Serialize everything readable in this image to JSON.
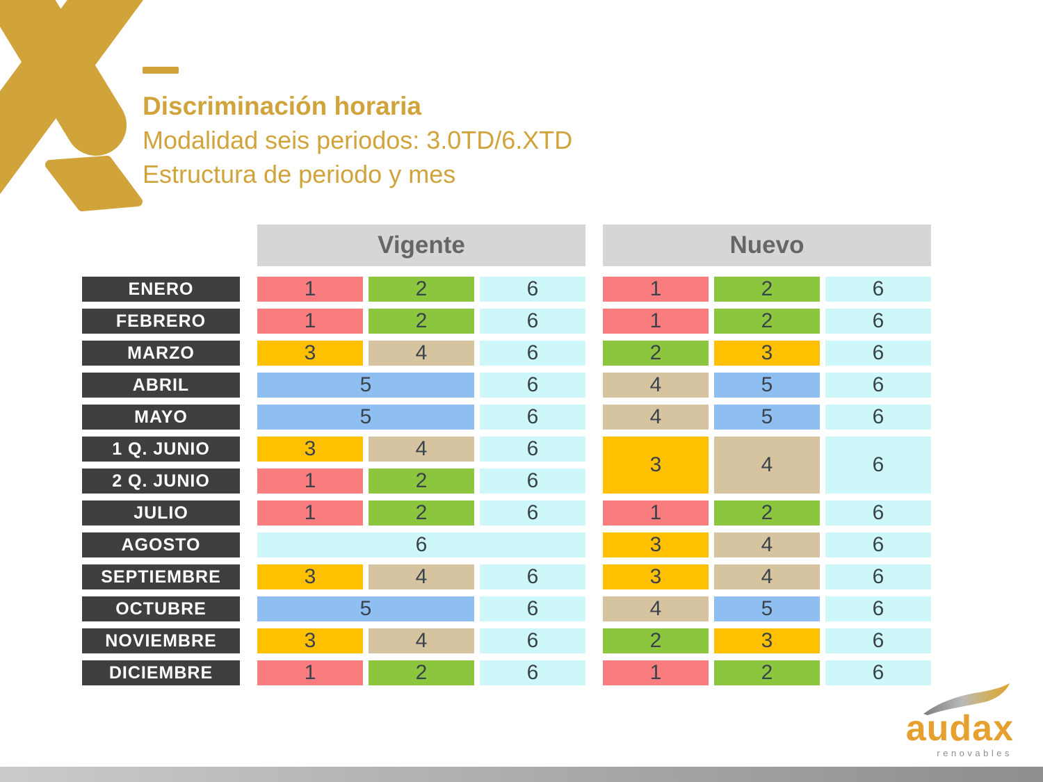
{
  "header": {
    "title": "Discriminación horaria",
    "subtitle1": "Modalidad seis periodos: 3.0TD/6.XTD",
    "subtitle2": "Estructura de periodo y mes"
  },
  "tables": {
    "group_headers": [
      {
        "label": "Vigente"
      },
      {
        "label": "Nuevo"
      }
    ],
    "period_colors": {
      "1": "#F97D7E",
      "2": "#8CC63F",
      "3": "#FFC000",
      "4": "#D6C3A0",
      "5": "#8FBEF1",
      "6": "#CEF7F9"
    },
    "rows": [
      {
        "month": "ENERO",
        "vigente": [
          {
            "p": "1"
          },
          {
            "p": "2"
          },
          {
            "p": "6"
          }
        ],
        "nuevo": [
          {
            "p": "1"
          },
          {
            "p": "2"
          },
          {
            "p": "6"
          }
        ]
      },
      {
        "month": "FEBRERO",
        "vigente": [
          {
            "p": "1"
          },
          {
            "p": "2"
          },
          {
            "p": "6"
          }
        ],
        "nuevo": [
          {
            "p": "1"
          },
          {
            "p": "2"
          },
          {
            "p": "6"
          }
        ]
      },
      {
        "month": "MARZO",
        "vigente": [
          {
            "p": "3"
          },
          {
            "p": "4"
          },
          {
            "p": "6"
          }
        ],
        "nuevo": [
          {
            "p": "2"
          },
          {
            "p": "3"
          },
          {
            "p": "6"
          }
        ]
      },
      {
        "month": "ABRIL",
        "vigente": [
          {
            "p": "5",
            "cs": 2
          },
          {
            "p": "6"
          }
        ],
        "nuevo": [
          {
            "p": "4"
          },
          {
            "p": "5"
          },
          {
            "p": "6"
          }
        ]
      },
      {
        "month": "MAYO",
        "vigente": [
          {
            "p": "5",
            "cs": 2
          },
          {
            "p": "6"
          }
        ],
        "nuevo": [
          {
            "p": "4"
          },
          {
            "p": "5"
          },
          {
            "p": "6"
          }
        ]
      },
      {
        "month": "1 Q. JUNIO",
        "vigente": [
          {
            "p": "3"
          },
          {
            "p": "4"
          },
          {
            "p": "6"
          }
        ],
        "nuevo": [
          {
            "p": "3",
            "rs": 2
          },
          {
            "p": "4",
            "rs": 2
          },
          {
            "p": "6",
            "rs": 2
          }
        ]
      },
      {
        "month": "2 Q. JUNIO",
        "vigente": [
          {
            "p": "1"
          },
          {
            "p": "2"
          },
          {
            "p": "6"
          }
        ],
        "nuevo": []
      },
      {
        "month": "JULIO",
        "vigente": [
          {
            "p": "1"
          },
          {
            "p": "2"
          },
          {
            "p": "6"
          }
        ],
        "nuevo": [
          {
            "p": "1"
          },
          {
            "p": "2"
          },
          {
            "p": "6"
          }
        ]
      },
      {
        "month": "AGOSTO",
        "vigente": [
          {
            "p": "6",
            "cs": 3
          }
        ],
        "nuevo": [
          {
            "p": "3"
          },
          {
            "p": "4"
          },
          {
            "p": "6"
          }
        ]
      },
      {
        "month": "SEPTIEMBRE",
        "vigente": [
          {
            "p": "3"
          },
          {
            "p": "4"
          },
          {
            "p": "6"
          }
        ],
        "nuevo": [
          {
            "p": "3"
          },
          {
            "p": "4"
          },
          {
            "p": "6"
          }
        ]
      },
      {
        "month": "OCTUBRE",
        "vigente": [
          {
            "p": "5",
            "cs": 2
          },
          {
            "p": "6"
          }
        ],
        "nuevo": [
          {
            "p": "4"
          },
          {
            "p": "5"
          },
          {
            "p": "6"
          }
        ]
      },
      {
        "month": "NOVIEMBRE",
        "vigente": [
          {
            "p": "3"
          },
          {
            "p": "4"
          },
          {
            "p": "6"
          }
        ],
        "nuevo": [
          {
            "p": "2"
          },
          {
            "p": "3"
          },
          {
            "p": "6"
          }
        ]
      },
      {
        "month": "DICIEMBRE",
        "vigente": [
          {
            "p": "1"
          },
          {
            "p": "2"
          },
          {
            "p": "6"
          }
        ],
        "nuevo": [
          {
            "p": "1"
          },
          {
            "p": "2"
          },
          {
            "p": "6"
          }
        ]
      }
    ]
  },
  "brand": {
    "name": "audax",
    "sub": "renovables"
  },
  "colors": {
    "gold": "#D1A33B",
    "month_bg": "#3F3F3F",
    "header_bg": "#D6D6D6",
    "header_text": "#666666",
    "cell_text": "#3A434B",
    "brand_orange": "#E6A02F",
    "brand_gray": "#8F8F8F",
    "footer_gradient_left": "#CBCBCB",
    "footer_gradient_right": "#8E8E8E"
  }
}
